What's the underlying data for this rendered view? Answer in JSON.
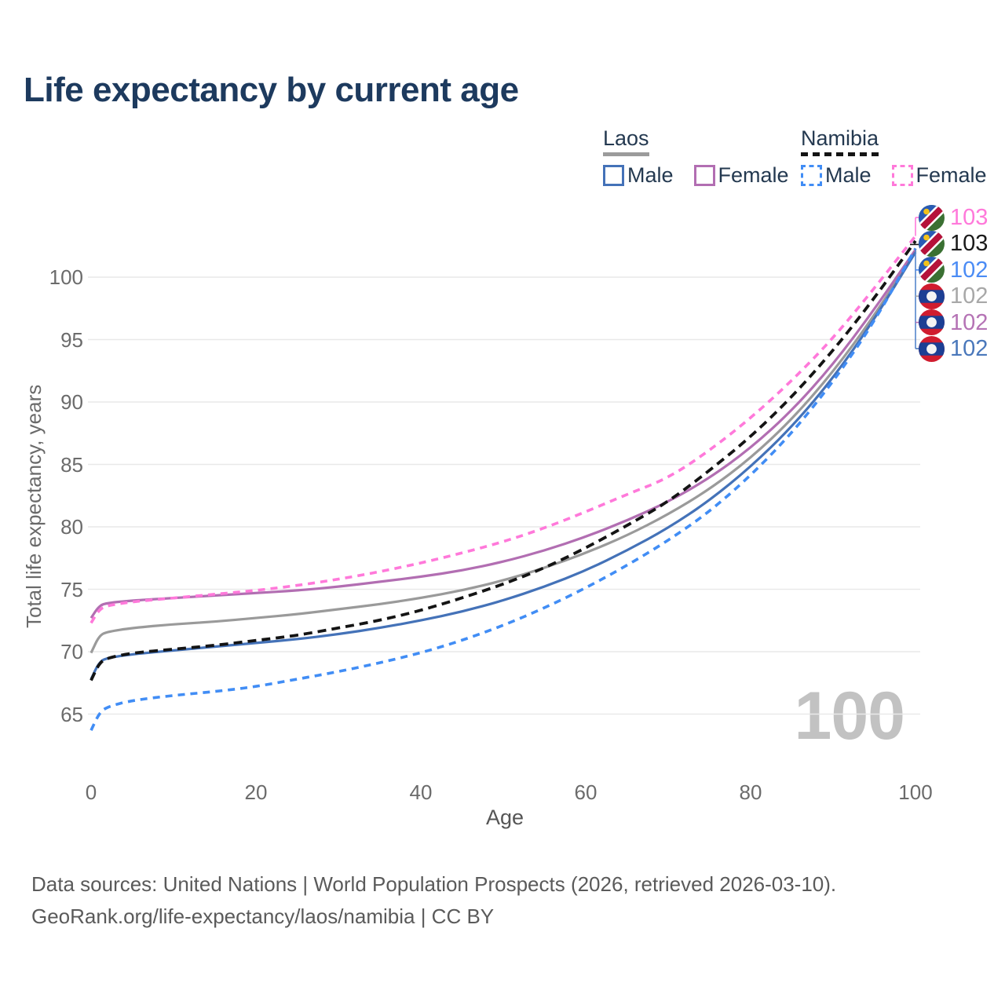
{
  "title": "Life expectancy by current age",
  "legend": {
    "laos": {
      "title": "Laos",
      "male": "Male",
      "female": "Female"
    },
    "namibia": {
      "title": "Namibia",
      "male": "Male",
      "female": "Female"
    }
  },
  "colors": {
    "laos_male": "#4472b8",
    "laos_female": "#b26eb2",
    "laos_total": "#9a9a9a",
    "namibia_male": "#418df5",
    "namibia_female": "#ff79da",
    "namibia_total": "#141414",
    "grid": "#e9e9e9",
    "tick_text": "#6b6b6b",
    "title_text": "#1d3a5e",
    "watermark": "#c2c2c2",
    "leader_bracket": "#5585cc"
  },
  "chart_data": {
    "type": "line",
    "title": "Life expectancy by current age",
    "xlabel": "Age",
    "ylabel": "Total life expectancy, years",
    "xlim": [
      0,
      100
    ],
    "ylim": [
      63,
      104
    ],
    "x_ticks": [
      0,
      20,
      40,
      60,
      80,
      100
    ],
    "y_ticks": [
      65,
      70,
      75,
      80,
      85,
      90,
      95,
      100
    ],
    "grid": "horizontal",
    "legend_position": "top-right",
    "x": [
      0,
      1,
      2,
      5,
      10,
      15,
      20,
      25,
      30,
      35,
      40,
      45,
      50,
      55,
      60,
      65,
      70,
      75,
      80,
      85,
      90,
      95,
      100
    ],
    "series": [
      {
        "name": "Laos",
        "country": "Laos",
        "sex": "both",
        "style": "solid",
        "color": "#9a9a9a",
        "values": [
          69.9,
          71.3,
          71.6,
          71.9,
          72.2,
          72.4,
          72.7,
          73.0,
          73.4,
          73.8,
          74.3,
          74.9,
          75.7,
          76.7,
          77.9,
          79.3,
          81.0,
          83.0,
          85.5,
          88.6,
          92.4,
          96.9,
          102.1
        ]
      },
      {
        "name": "Laos Female",
        "country": "Laos",
        "sex": "female",
        "style": "solid",
        "color": "#b26eb2",
        "values": [
          72.7,
          73.7,
          73.9,
          74.1,
          74.3,
          74.5,
          74.7,
          74.9,
          75.2,
          75.6,
          76.0,
          76.5,
          77.2,
          78.1,
          79.2,
          80.5,
          82.0,
          83.9,
          86.3,
          89.3,
          93.0,
          97.4,
          102.2
        ]
      },
      {
        "name": "Laos Male",
        "country": "Laos",
        "sex": "male",
        "style": "solid",
        "color": "#4472b8",
        "values": [
          67.8,
          69.2,
          69.5,
          69.8,
          70.1,
          70.4,
          70.7,
          71.0,
          71.4,
          71.9,
          72.5,
          73.2,
          74.1,
          75.2,
          76.5,
          78.1,
          79.9,
          82.1,
          84.8,
          88.0,
          91.9,
          96.6,
          102.0
        ]
      },
      {
        "name": "Namibia",
        "country": "Namibia",
        "sex": "both",
        "style": "dashed",
        "color": "#141414",
        "values": [
          67.7,
          69.1,
          69.5,
          69.9,
          70.2,
          70.5,
          70.9,
          71.3,
          71.9,
          72.5,
          73.3,
          74.3,
          75.4,
          76.7,
          78.3,
          80.1,
          82.0,
          84.5,
          87.2,
          90.4,
          94.1,
          98.3,
          102.9
        ]
      },
      {
        "name": "Namibia Female",
        "country": "Namibia",
        "sex": "female",
        "style": "dashed",
        "color": "#ff79da",
        "values": [
          72.3,
          73.4,
          73.7,
          74.0,
          74.3,
          74.6,
          74.9,
          75.3,
          75.8,
          76.4,
          77.1,
          77.9,
          78.8,
          79.9,
          81.2,
          82.6,
          83.9,
          86.1,
          88.7,
          91.7,
          95.1,
          99.1,
          103.3
        ]
      },
      {
        "name": "Namibia Male",
        "country": "Namibia",
        "sex": "male",
        "style": "dashed",
        "color": "#418df5",
        "values": [
          63.7,
          65.1,
          65.6,
          66.1,
          66.5,
          66.8,
          67.2,
          67.8,
          68.4,
          69.1,
          69.9,
          70.9,
          72.1,
          73.5,
          75.1,
          76.9,
          78.9,
          81.2,
          84.1,
          87.5,
          91.6,
          96.4,
          102.3
        ]
      }
    ],
    "end_labels": [
      {
        "flag": "namibia",
        "value": "103",
        "color": "#ff79da",
        "series": "Namibia Female"
      },
      {
        "flag": "namibia",
        "value": "103",
        "color": "#1a1a1a",
        "series": "Namibia"
      },
      {
        "flag": "namibia",
        "value": "102",
        "color": "#4b8cf5",
        "series": "Namibia Male"
      },
      {
        "flag": "laos",
        "value": "102",
        "color": "#a8a8a8",
        "series": "Laos"
      },
      {
        "flag": "laos",
        "value": "102",
        "color": "#b573b5",
        "series": "Laos Female"
      },
      {
        "flag": "laos",
        "value": "102",
        "color": "#4a78bb",
        "series": "Laos Male"
      }
    ],
    "age_marker": "100"
  },
  "watermark_age": "100",
  "footer": {
    "line1": "Data sources: United Nations | World Population Prospects (2026, retrieved 2026-03-10).",
    "line2": "GeoRank.org/life-expectancy/laos/namibia | CC BY"
  }
}
